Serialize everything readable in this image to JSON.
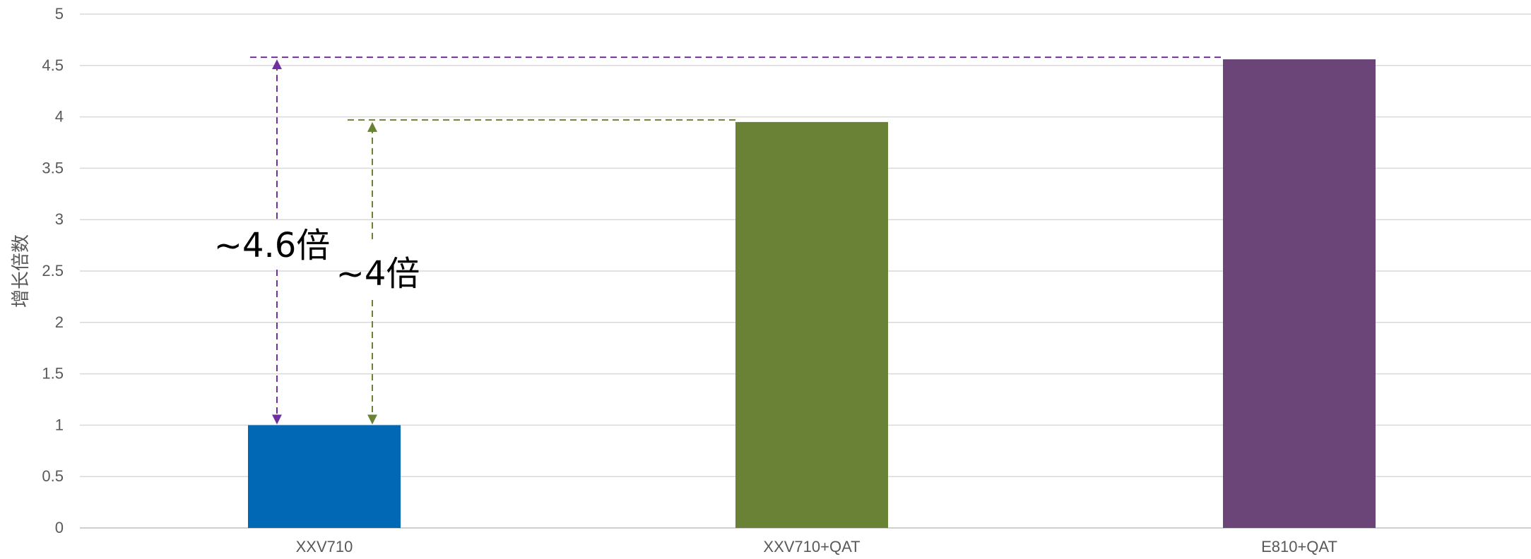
{
  "chart_data": {
    "type": "bar",
    "categories": [
      "XXV710",
      "XXV710+QAT",
      "E810+QAT"
    ],
    "values": [
      1.0,
      3.95,
      4.56
    ],
    "bar_colors": [
      "#0068B5",
      "#6A8235",
      "#6B4478"
    ],
    "ylabel": "增长倍数",
    "xlabel": "",
    "ylim": [
      0,
      5
    ],
    "yticks": [
      0,
      0.5,
      1,
      1.5,
      2,
      2.5,
      3,
      3.5,
      4,
      4.5,
      5
    ],
    "ytick_labels": [
      "0",
      "0.5",
      "1",
      "1.5",
      "2",
      "2.5",
      "3",
      "3.5",
      "4",
      "4.5",
      "5"
    ],
    "grid": true,
    "legend": "none",
    "annotations": [
      {
        "text": "~4.6倍",
        "from_category": "XXV710",
        "to_category": "E810+QAT",
        "from_value": 1.0,
        "to_value": 4.56,
        "color": "#7030A0"
      },
      {
        "text": "~4倍",
        "from_category": "XXV710",
        "to_category": "XXV710+QAT",
        "from_value": 1.0,
        "to_value": 3.95,
        "color": "#6A8235"
      }
    ]
  }
}
